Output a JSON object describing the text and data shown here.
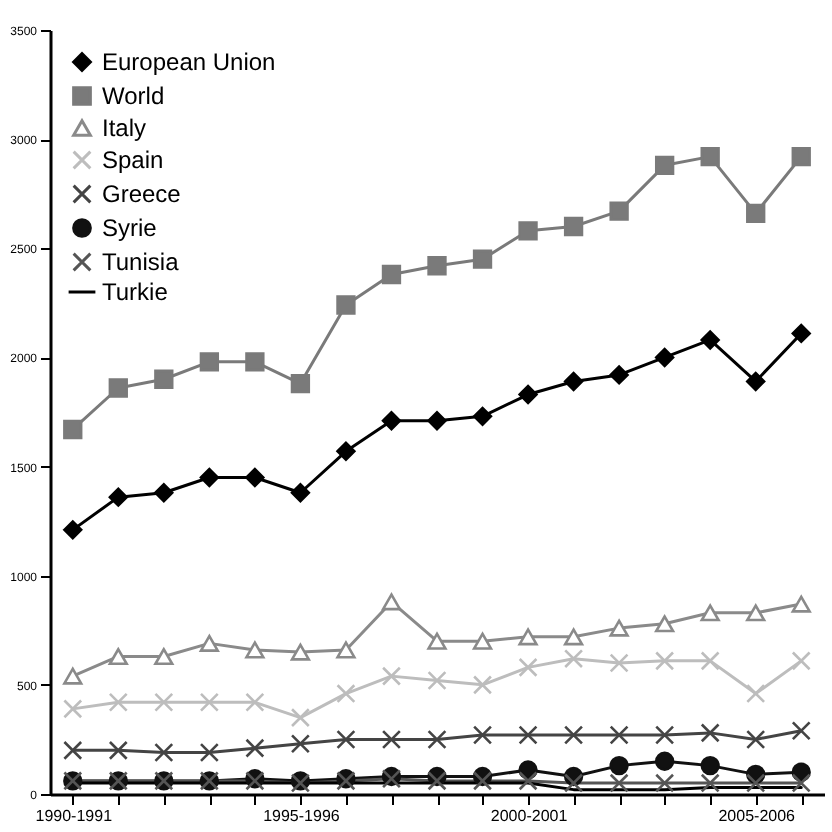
{
  "chart_data": {
    "type": "line",
    "categories": [
      "1990-1991",
      null,
      null,
      null,
      null,
      "1995-1996",
      null,
      null,
      null,
      null,
      "2000-2001",
      null,
      null,
      null,
      null,
      "2005-2006",
      null
    ],
    "ylim": [
      0,
      3500
    ],
    "yticks": [
      0,
      500,
      1000,
      1500,
      2000,
      2500,
      3000,
      3500
    ],
    "legend": "top left",
    "line_style": "solid",
    "series": [
      {
        "name": "European Union",
        "color": "#000000",
        "marker": "diamond",
        "values": [
          1210,
          1360,
          1380,
          1450,
          1450,
          1380,
          1570,
          1710,
          1710,
          1730,
          1830,
          1890,
          1920,
          2000,
          2080,
          1890,
          2110
        ]
      },
      {
        "name": "World",
        "color": "#7a7a7a",
        "marker": "square",
        "values": [
          1670,
          1860,
          1900,
          1980,
          1980,
          1880,
          2240,
          2380,
          2420,
          2450,
          2580,
          2600,
          2670,
          2880,
          2920,
          2660,
          2920
        ]
      },
      {
        "name": "Italy",
        "color": "#8a8a8a",
        "marker": "triangle",
        "values": [
          540,
          630,
          630,
          690,
          660,
          650,
          660,
          880,
          700,
          700,
          720,
          720,
          760,
          780,
          830,
          830,
          870
        ]
      },
      {
        "name": "Spain",
        "color": "#bdbdbd",
        "marker": "cross",
        "values": [
          390,
          420,
          420,
          420,
          420,
          350,
          460,
          540,
          520,
          500,
          580,
          620,
          600,
          610,
          610,
          460,
          610
        ]
      },
      {
        "name": "Greece",
        "color": "#444444",
        "marker": "cross",
        "values": [
          200,
          200,
          190,
          190,
          210,
          230,
          250,
          250,
          250,
          270,
          270,
          270,
          270,
          270,
          280,
          250,
          290
        ]
      },
      {
        "name": "Syrie",
        "color": "#111111",
        "marker": "circle",
        "values": [
          60,
          60,
          60,
          60,
          70,
          60,
          70,
          80,
          80,
          80,
          110,
          80,
          130,
          150,
          130,
          90,
          100
        ]
      },
      {
        "name": "Tunisia",
        "color": "#555555",
        "marker": "cross",
        "values": [
          60,
          60,
          60,
          60,
          60,
          50,
          60,
          70,
          60,
          60,
          60,
          50,
          50,
          50,
          50,
          50,
          50
        ]
      },
      {
        "name": "Turkie",
        "color": "#000000",
        "marker": "none",
        "values": [
          50,
          50,
          50,
          50,
          50,
          50,
          50,
          50,
          50,
          50,
          50,
          20,
          20,
          20,
          30,
          30,
          30
        ]
      }
    ]
  }
}
